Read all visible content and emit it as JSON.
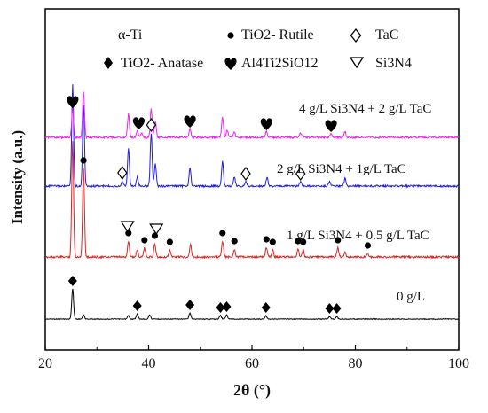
{
  "chart_data": {
    "type": "line",
    "xlabel": "2θ (°)",
    "ylabel": "Intensity (a.u.)",
    "xlim": [
      20,
      100
    ],
    "xticks": [
      "20",
      "40",
      "60",
      "80",
      "100"
    ],
    "grid": false,
    "legend_position": "top",
    "legend": [
      {
        "marker": "none",
        "text": "α-Ti"
      },
      {
        "marker": "circle",
        "text": "TiO2- Rutile"
      },
      {
        "marker": "open-diamond",
        "text": "TaC"
      },
      {
        "marker": "filled-diamond",
        "text": "TiO2- Anatase"
      },
      {
        "marker": "heart",
        "text": "Al4Ti2SiO12"
      },
      {
        "marker": "open-triangle-down",
        "text": "Si3N4"
      }
    ],
    "series": [
      {
        "name": "0 g/L",
        "color": "#000000",
        "peaks": [
          {
            "x": 25.3,
            "h": 34
          },
          {
            "x": 27.4,
            "h": 5
          },
          {
            "x": 36.1,
            "h": 4
          },
          {
            "x": 37.8,
            "h": 6
          },
          {
            "x": 40.2,
            "h": 5
          },
          {
            "x": 48.0,
            "h": 7
          },
          {
            "x": 53.9,
            "h": 4
          },
          {
            "x": 55.1,
            "h": 5
          },
          {
            "x": 62.7,
            "h": 4
          },
          {
            "x": 75.0,
            "h": 3
          },
          {
            "x": 76.4,
            "h": 3
          }
        ],
        "markers": [
          {
            "x": 25.3,
            "type": "filled-diamond"
          },
          {
            "x": 37.8,
            "type": "filled-diamond"
          },
          {
            "x": 48.0,
            "type": "filled-diamond"
          },
          {
            "x": 53.9,
            "type": "filled-diamond"
          },
          {
            "x": 55.1,
            "type": "filled-diamond"
          },
          {
            "x": 62.7,
            "type": "filled-diamond"
          },
          {
            "x": 75.0,
            "type": "filled-diamond"
          },
          {
            "x": 76.4,
            "type": "filled-diamond"
          }
        ]
      },
      {
        "name": "1 g/L Si3N4 + 0.5 g/L TaC",
        "color": "#e02020",
        "peaks": [
          {
            "x": 25.3,
            "h": 130
          },
          {
            "x": 27.4,
            "h": 100
          },
          {
            "x": 36.1,
            "h": 18
          },
          {
            "x": 37.8,
            "h": 8
          },
          {
            "x": 39.2,
            "h": 10
          },
          {
            "x": 41.2,
            "h": 15
          },
          {
            "x": 44.1,
            "h": 8
          },
          {
            "x": 48.1,
            "h": 14
          },
          {
            "x": 54.3,
            "h": 18
          },
          {
            "x": 56.6,
            "h": 9
          },
          {
            "x": 62.8,
            "h": 11
          },
          {
            "x": 64.0,
            "h": 8
          },
          {
            "x": 68.9,
            "h": 9
          },
          {
            "x": 69.9,
            "h": 8
          },
          {
            "x": 76.6,
            "h": 10
          },
          {
            "x": 78.0,
            "h": 5
          },
          {
            "x": 82.4,
            "h": 4
          }
        ],
        "markers": [
          {
            "x": 27.4,
            "type": "circle"
          },
          {
            "x": 35.9,
            "type": "open-triangle-down"
          },
          {
            "x": 36.1,
            "type": "circle"
          },
          {
            "x": 39.2,
            "type": "circle"
          },
          {
            "x": 41.2,
            "type": "circle"
          },
          {
            "x": 41.5,
            "type": "open-triangle-down"
          },
          {
            "x": 44.1,
            "type": "circle"
          },
          {
            "x": 54.3,
            "type": "circle"
          },
          {
            "x": 56.6,
            "type": "circle"
          },
          {
            "x": 62.8,
            "type": "circle"
          },
          {
            "x": 64.0,
            "type": "circle"
          },
          {
            "x": 68.9,
            "type": "circle"
          },
          {
            "x": 69.9,
            "type": "circle"
          },
          {
            "x": 76.6,
            "type": "circle"
          },
          {
            "x": 82.4,
            "type": "circle"
          }
        ]
      },
      {
        "name": "2 g/L Si3N4 + 1g/L TaC",
        "color": "#1e1ee6",
        "peaks": [
          {
            "x": 25.3,
            "h": 115
          },
          {
            "x": 27.4,
            "h": 92
          },
          {
            "x": 34.9,
            "h": 6
          },
          {
            "x": 36.1,
            "h": 42
          },
          {
            "x": 37.8,
            "h": 10
          },
          {
            "x": 40.5,
            "h": 60
          },
          {
            "x": 41.3,
            "h": 25
          },
          {
            "x": 48.0,
            "h": 20
          },
          {
            "x": 54.3,
            "h": 28
          },
          {
            "x": 56.6,
            "h": 10
          },
          {
            "x": 58.8,
            "h": 5
          },
          {
            "x": 62.9,
            "h": 10
          },
          {
            "x": 69.4,
            "h": 5
          },
          {
            "x": 75.0,
            "h": 6
          },
          {
            "x": 78.0,
            "h": 9
          }
        ],
        "markers": [
          {
            "x": 34.9,
            "type": "open-diamond"
          },
          {
            "x": 40.5,
            "type": "open-diamond"
          },
          {
            "x": 58.8,
            "type": "open-diamond"
          },
          {
            "x": 69.4,
            "type": "open-diamond"
          }
        ]
      },
      {
        "name": "4 g/L Si3N4 + 2 g/L TaC",
        "color": "#f020f0",
        "peaks": [
          {
            "x": 25.3,
            "h": 32
          },
          {
            "x": 27.4,
            "h": 52
          },
          {
            "x": 36.1,
            "h": 26
          },
          {
            "x": 37.8,
            "h": 8
          },
          {
            "x": 38.6,
            "h": 5
          },
          {
            "x": 40.5,
            "h": 32
          },
          {
            "x": 41.3,
            "h": 18
          },
          {
            "x": 48.0,
            "h": 10
          },
          {
            "x": 54.3,
            "h": 22
          },
          {
            "x": 55.2,
            "h": 8
          },
          {
            "x": 56.6,
            "h": 6
          },
          {
            "x": 62.8,
            "h": 7
          },
          {
            "x": 69.4,
            "h": 5
          },
          {
            "x": 75.3,
            "h": 5
          },
          {
            "x": 78.0,
            "h": 6
          }
        ],
        "markers": [
          {
            "x": 25.3,
            "type": "heart"
          },
          {
            "x": 38.1,
            "type": "heart"
          },
          {
            "x": 48.0,
            "type": "heart"
          },
          {
            "x": 62.8,
            "type": "heart"
          },
          {
            "x": 75.3,
            "type": "heart"
          }
        ]
      }
    ]
  }
}
